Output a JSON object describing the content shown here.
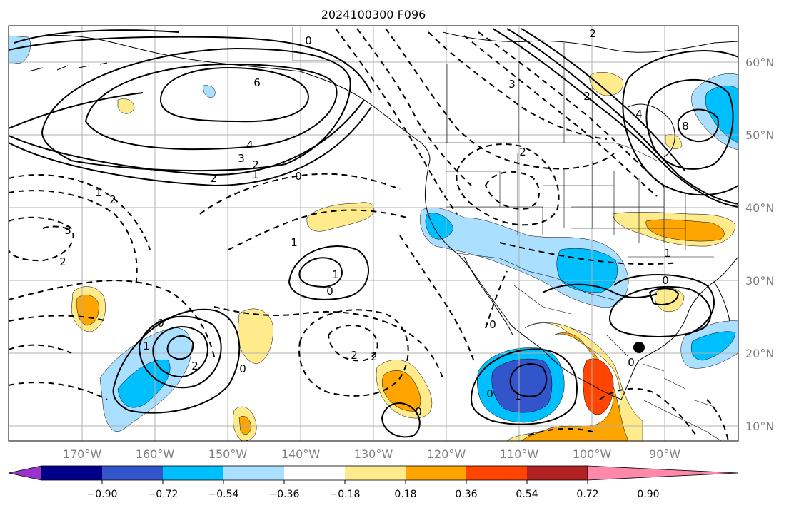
{
  "title": "2024100300 F096",
  "lat_labels": [
    "60°N",
    "50°N",
    "40°N",
    "30°N",
    "20°N",
    "10°N"
  ],
  "lon_labels": [
    "170°W",
    "160°W",
    "150°W",
    "140°W",
    "130°W",
    "120°W",
    "110°W",
    "100°W",
    "90°W"
  ],
  "colorbar": {
    "colors": [
      "#9933cc",
      "#00008b",
      "#3355cc",
      "#00bfff",
      "#aadfff",
      "#ffffff",
      "#ffeb8c",
      "#ffa500",
      "#ff4500",
      "#b22222",
      "#ff88aa"
    ],
    "tick_labels": [
      "−0.90",
      "−0.72",
      "−0.54",
      "−0.36",
      "−0.18",
      "0.18",
      "0.36",
      "0.54",
      "0.72",
      "0.90"
    ]
  },
  "contour_labels": [
    "0",
    "2",
    "6",
    "4",
    "3",
    "2",
    "1",
    "2",
    "3",
    "2",
    "4",
    "8",
    "0",
    "2",
    "1",
    "2",
    "3",
    "2",
    "1",
    "1",
    "0",
    "2",
    "2",
    "0",
    "0",
    "1",
    "0",
    "0",
    "0",
    "1",
    "1",
    "0",
    "0",
    "2"
  ],
  "colors": {
    "map_border": "#000000",
    "grid": "#b0b0b0",
    "coast": "#000000",
    "contour": "#000000"
  }
}
